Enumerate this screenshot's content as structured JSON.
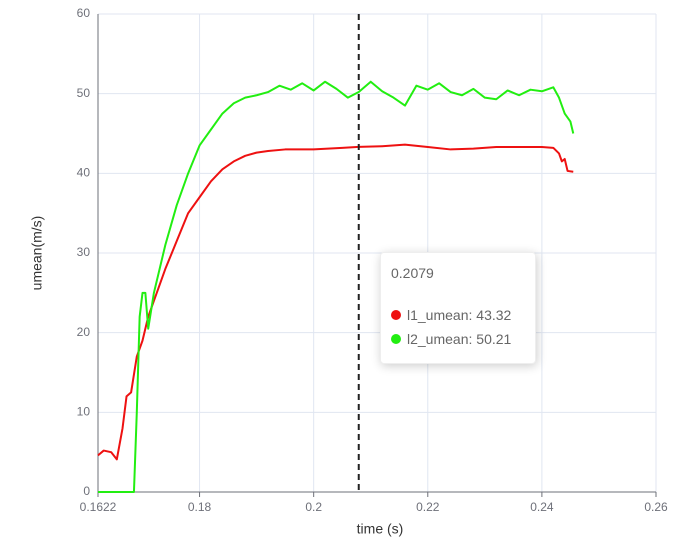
{
  "chart_data": {
    "type": "line",
    "x_label": "time (s)",
    "y_label": "umean(m/s)",
    "xlim": [
      0.1622,
      0.26
    ],
    "xticks": [
      0.1622,
      0.18,
      0.2,
      0.22,
      0.24,
      0.26
    ],
    "ylim": [
      0,
      60
    ],
    "yticks": [
      0,
      10,
      20,
      30,
      40,
      50,
      60
    ],
    "grid": true,
    "series": [
      {
        "name": "l1_umean",
        "color": "#ee1111",
        "x": [
          0.1622,
          0.1632,
          0.1645,
          0.1655,
          0.1665,
          0.1672,
          0.168,
          0.169,
          0.17,
          0.171,
          0.172,
          0.174,
          0.176,
          0.178,
          0.18,
          0.182,
          0.184,
          0.186,
          0.188,
          0.19,
          0.192,
          0.195,
          0.2,
          0.205,
          0.2079,
          0.212,
          0.216,
          0.22,
          0.224,
          0.228,
          0.232,
          0.236,
          0.24,
          0.242,
          0.243,
          0.2435,
          0.244,
          0.2445,
          0.2455
        ],
        "values": [
          4.6,
          5.2,
          5.0,
          4.1,
          8,
          12,
          12.5,
          17,
          19,
          22,
          24,
          28,
          31.5,
          35,
          37,
          39,
          40.5,
          41.5,
          42.2,
          42.6,
          42.8,
          43.0,
          43.0,
          43.2,
          43.32,
          43.4,
          43.6,
          43.3,
          43.0,
          43.1,
          43.3,
          43.3,
          43.3,
          43.2,
          42.5,
          41.5,
          41.8,
          40.3,
          40.2
        ]
      },
      {
        "name": "l2_umean",
        "color": "#22ee11",
        "x": [
          0.1622,
          0.1685,
          0.169,
          0.1695,
          0.17,
          0.1705,
          0.171,
          0.172,
          0.173,
          0.174,
          0.176,
          0.178,
          0.18,
          0.182,
          0.184,
          0.186,
          0.188,
          0.19,
          0.192,
          0.194,
          0.196,
          0.198,
          0.2,
          0.202,
          0.204,
          0.206,
          0.2079,
          0.21,
          0.212,
          0.214,
          0.216,
          0.218,
          0.22,
          0.222,
          0.224,
          0.226,
          0.228,
          0.23,
          0.232,
          0.234,
          0.236,
          0.238,
          0.24,
          0.242,
          0.243,
          0.244,
          0.245,
          0.2455
        ],
        "values": [
          0,
          0,
          10,
          22,
          25,
          25,
          20.5,
          25,
          28,
          31,
          36,
          40,
          43.5,
          45.5,
          47.5,
          48.8,
          49.5,
          49.8,
          50.2,
          51,
          50.5,
          51.3,
          50.4,
          51.5,
          50.6,
          49.5,
          50.21,
          51.5,
          50.3,
          49.5,
          48.5,
          51,
          50.5,
          51.3,
          50.2,
          49.8,
          50.6,
          49.5,
          49.3,
          50.4,
          49.8,
          50.5,
          50.3,
          50.8,
          49.5,
          47.5,
          46.5,
          45
        ]
      }
    ],
    "tooltip": {
      "x": 0.2079,
      "values": [
        43.32,
        50.21
      ]
    }
  }
}
